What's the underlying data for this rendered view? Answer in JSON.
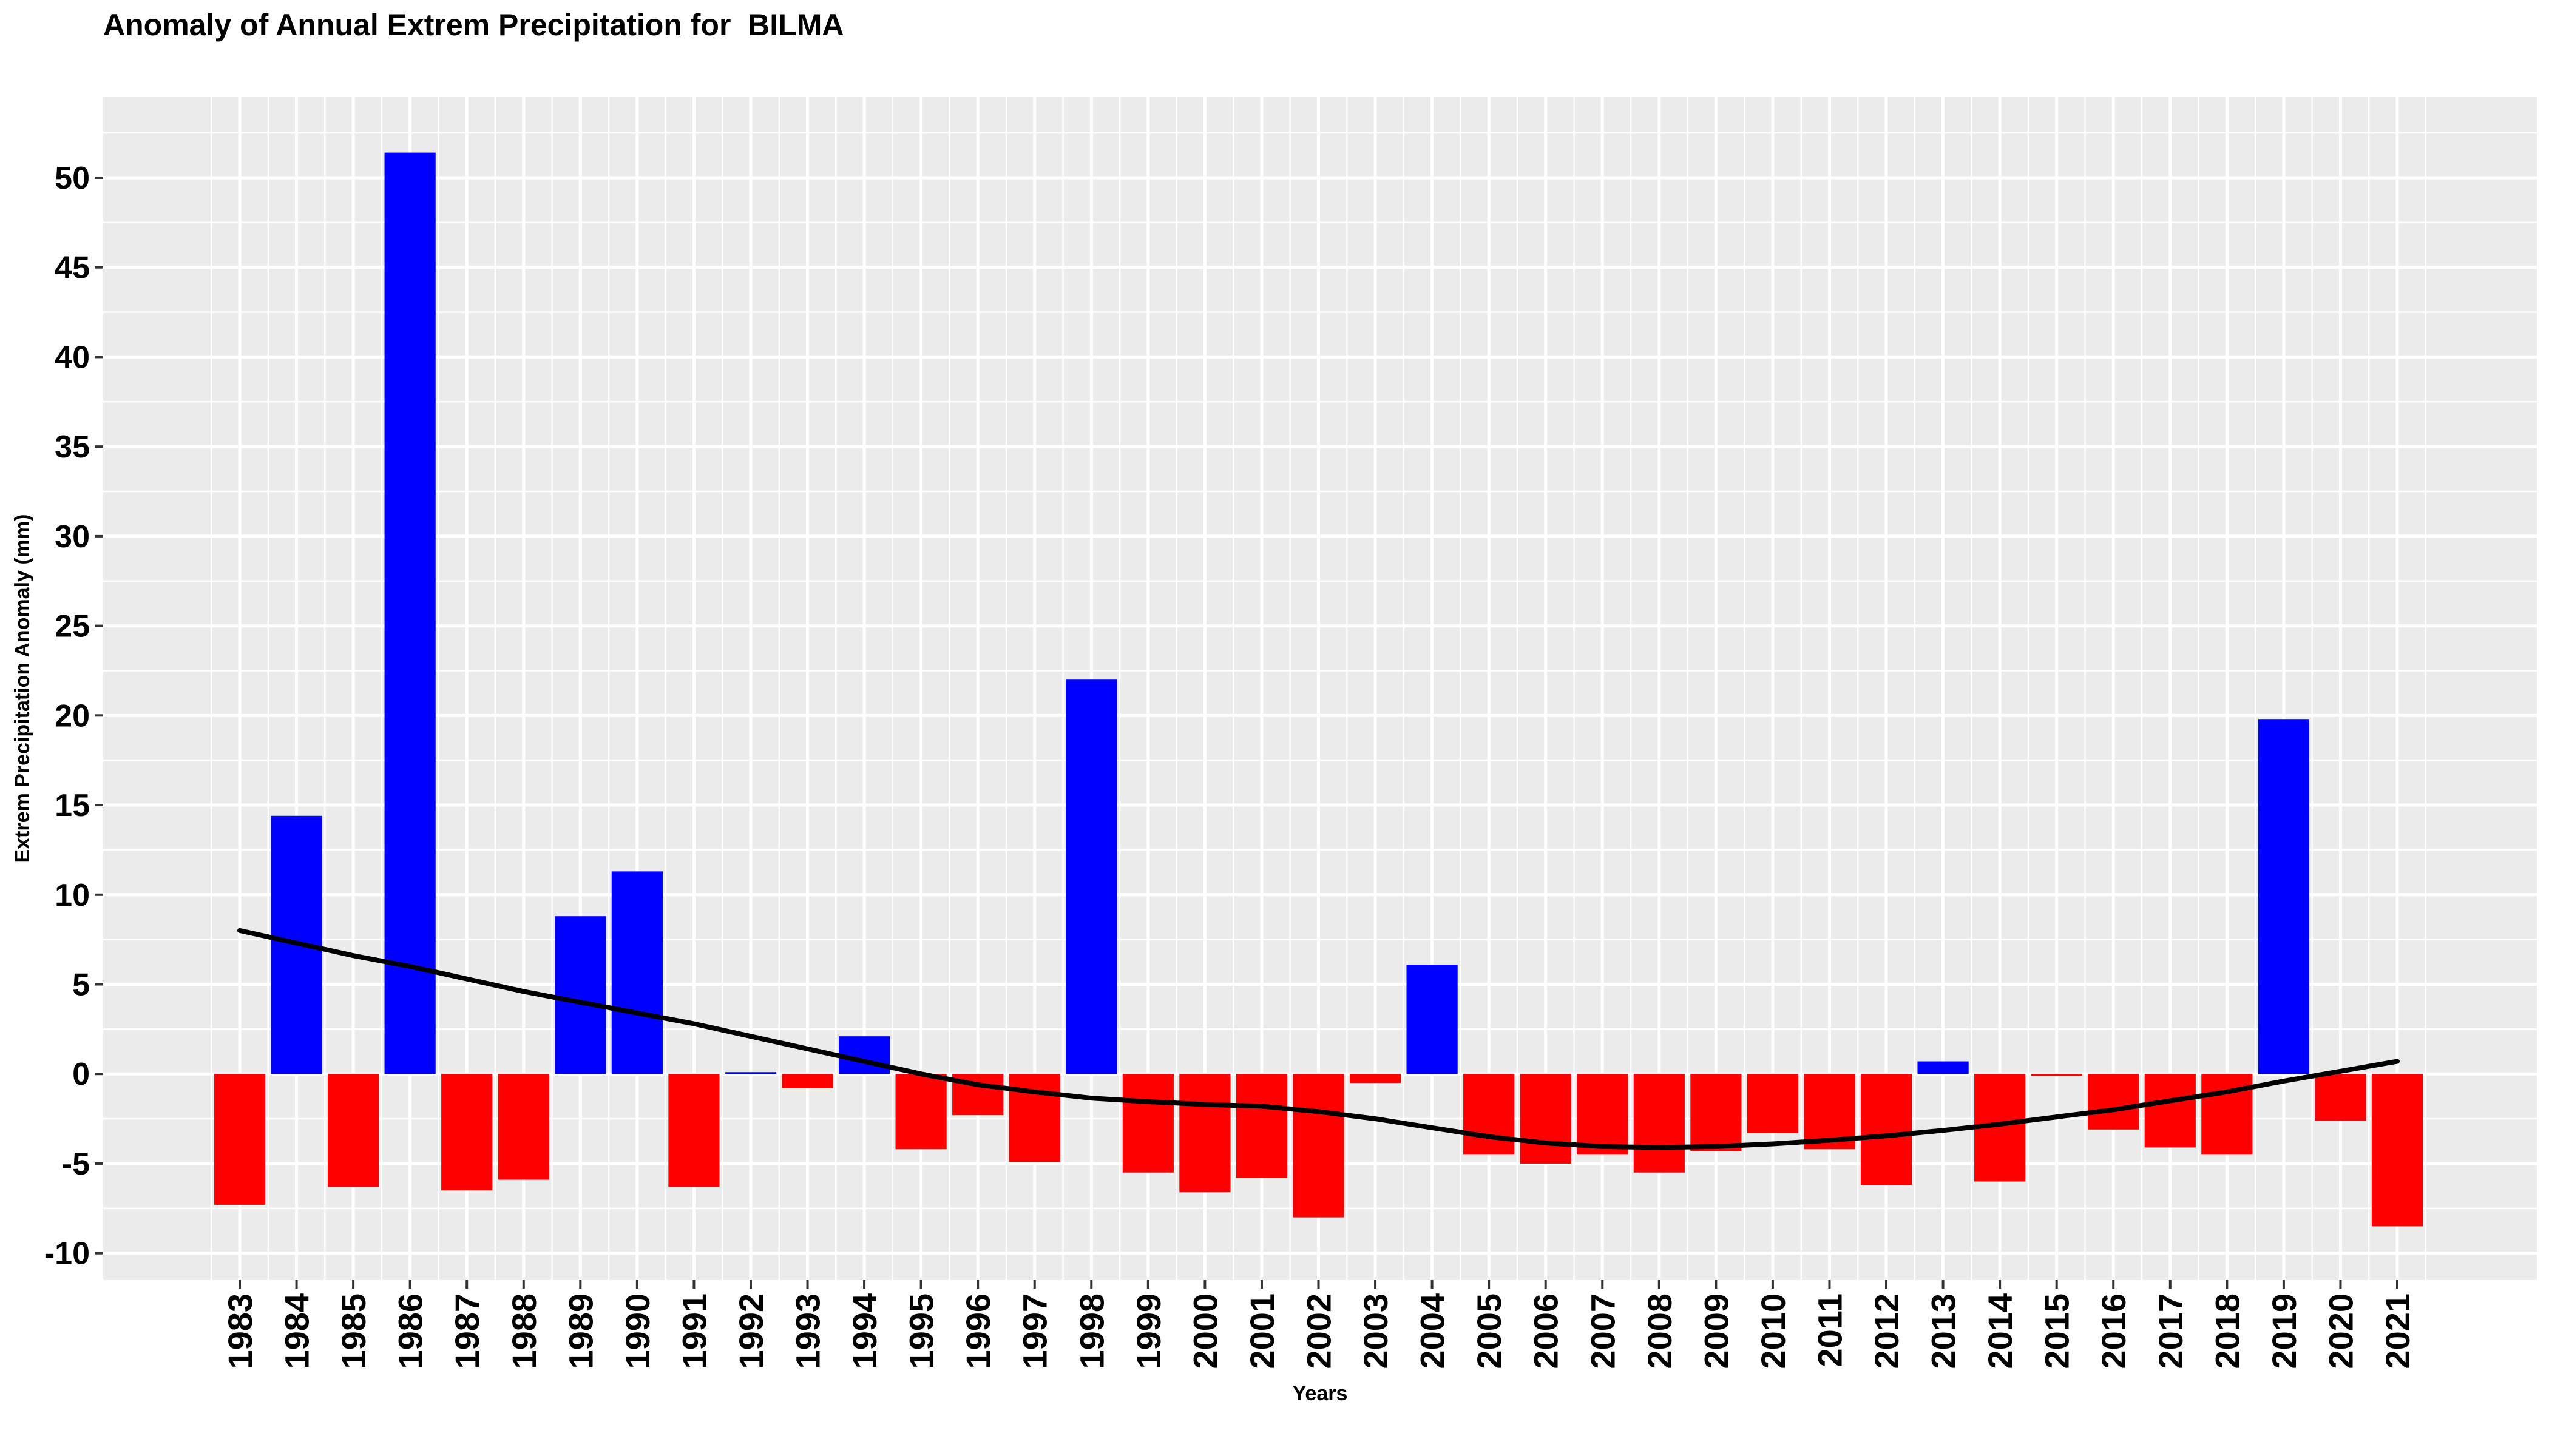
{
  "chart_data": {
    "type": "bar",
    "title": "Anomaly of Annual Extrem Precipitation for  BILMA",
    "xlabel": "Years",
    "ylabel": "Extrem Precipitation Anomaly (mm)",
    "ylim": [
      -11.5,
      54.5
    ],
    "yticks": [
      -10,
      -5,
      0,
      5,
      10,
      15,
      20,
      25,
      30,
      35,
      40,
      45,
      50
    ],
    "ytick_labels": [
      "-10",
      "-5",
      "0",
      "5",
      "10",
      "15",
      "20",
      "25",
      "30",
      "35",
      "40",
      "45",
      "50"
    ],
    "grid": true,
    "legend": "none",
    "colors": {
      "positive": "#0000FF",
      "negative": "#FF0000",
      "trend": "#000000",
      "panel": "#EBEBEB",
      "grid": "#FFFFFF"
    },
    "categories": [
      "1983",
      "1984",
      "1985",
      "1986",
      "1987",
      "1988",
      "1989",
      "1990",
      "1991",
      "1992",
      "1993",
      "1994",
      "1995",
      "1996",
      "1997",
      "1998",
      "1999",
      "2000",
      "2001",
      "2002",
      "2003",
      "2004",
      "2005",
      "2006",
      "2007",
      "2008",
      "2009",
      "2010",
      "2011",
      "2012",
      "2013",
      "2014",
      "2015",
      "2016",
      "2017",
      "2018",
      "2019",
      "2020",
      "2021"
    ],
    "values": [
      -7.3,
      14.4,
      -6.3,
      51.4,
      -6.5,
      -5.9,
      8.8,
      11.3,
      -6.3,
      0.1,
      -0.8,
      2.1,
      -4.2,
      -2.3,
      -4.9,
      22.0,
      -5.5,
      -6.6,
      -5.8,
      -8.0,
      -0.5,
      6.1,
      -4.5,
      -5.0,
      -4.5,
      -5.5,
      -4.3,
      -3.3,
      -4.2,
      -6.2,
      0.7,
      -6.0,
      -0.1,
      -3.1,
      -4.1,
      -4.5,
      19.8,
      -2.6,
      -8.5
    ],
    "trend_line": [
      8.0,
      7.3,
      6.6,
      6.0,
      5.3,
      4.6,
      4.0,
      3.4,
      2.8,
      2.1,
      1.4,
      0.7,
      0.0,
      -0.6,
      -1.0,
      -1.35,
      -1.55,
      -1.7,
      -1.8,
      -2.1,
      -2.5,
      -3.0,
      -3.5,
      -3.85,
      -4.05,
      -4.1,
      -4.05,
      -3.9,
      -3.7,
      -3.45,
      -3.15,
      -2.8,
      -2.4,
      -2.0,
      -1.5,
      -1.0,
      -0.4,
      0.15,
      0.7
    ]
  }
}
